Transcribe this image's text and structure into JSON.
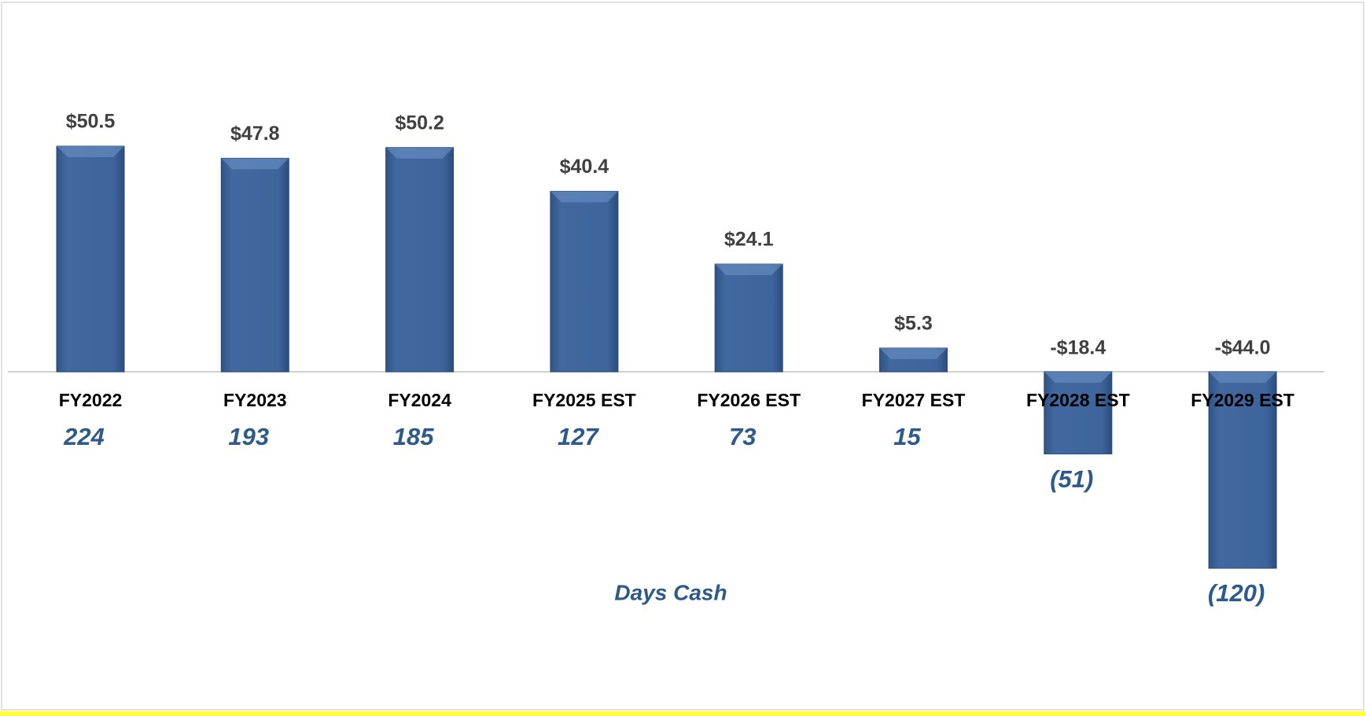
{
  "chart_data": {
    "type": "bar",
    "categories": [
      "FY2022",
      "FY2023",
      "FY2024",
      "FY2025 EST",
      "FY2026 EST",
      "FY2027 EST",
      "FY2028 EST",
      "FY2029 EST"
    ],
    "values": [
      50.5,
      47.8,
      50.2,
      40.4,
      24.1,
      5.3,
      -18.4,
      -44.0
    ],
    "value_labels": [
      "$50.5",
      "$47.8",
      "$50.2",
      "$40.4",
      "$24.1",
      "$5.3",
      "-$18.4",
      "-$44.0"
    ],
    "color": "#3b6399",
    "days_cash": {
      "label": "Days Cash",
      "values": [
        224,
        193,
        185,
        127,
        73,
        15,
        -51,
        -120
      ],
      "value_labels": [
        "224",
        "193",
        "185",
        "127",
        "73",
        "15",
        "(51)",
        "(120)"
      ],
      "color": "#2e5a8a"
    }
  }
}
